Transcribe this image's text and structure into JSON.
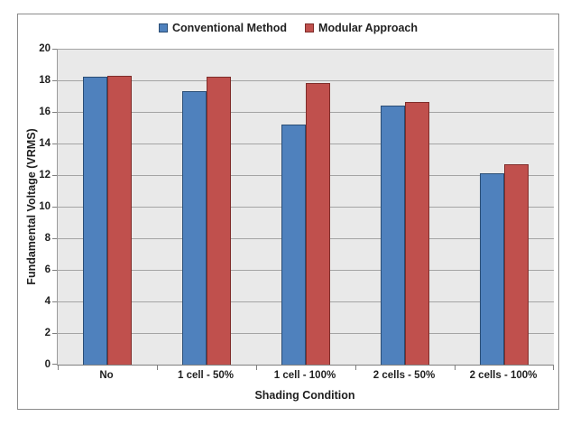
{
  "chart_data": {
    "type": "bar",
    "title": "",
    "categories": [
      "No",
      "1 cell - 50%",
      "1 cell - 100%",
      "2 cells - 50%",
      "2 cells - 100%"
    ],
    "series": [
      {
        "name": "Conventional Method",
        "color": "#4F81BD",
        "border": "#2A4D75",
        "values": [
          18.2,
          17.3,
          15.2,
          16.4,
          12.1
        ]
      },
      {
        "name": "Modular Approach",
        "color": "#C0504D",
        "border": "#7F2D2A",
        "values": [
          18.3,
          18.2,
          17.8,
          16.6,
          12.7
        ]
      }
    ],
    "xlabel": "Shading Condition",
    "ylabel": "Fundamental Voltage (VRMS)",
    "ylim": [
      0,
      20
    ],
    "yticks": [
      0,
      2,
      4,
      6,
      8,
      10,
      12,
      14,
      16,
      18,
      20
    ],
    "grid": true,
    "legend_position": "top",
    "plot_bg": "#E9E9E9",
    "gridline_color": "#A4A4A4",
    "axis_color": "#7f7f7f",
    "text_color": "#1f1f1f"
  }
}
